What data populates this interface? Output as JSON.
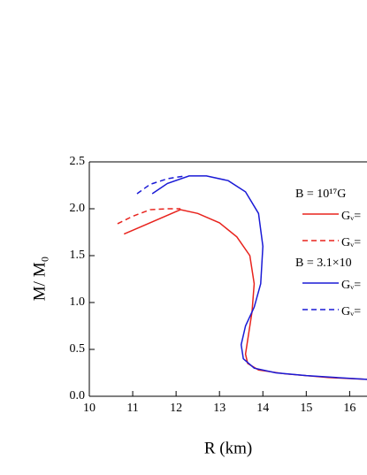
{
  "chart_data": {
    "type": "line",
    "x_label": "R (km)",
    "y_label": "M/ M₀",
    "xlim": [
      10,
      16.4
    ],
    "xticks": [
      10,
      11,
      12,
      13,
      14,
      15,
      16
    ],
    "ylim": [
      0,
      2.5
    ],
    "yticks": [
      {
        "value": 0,
        "label": "0.0"
      },
      {
        "value": 0.5,
        "label": "0.5"
      },
      {
        "value": 1,
        "label": "1.0"
      },
      {
        "value": 1.5,
        "label": "1.5"
      },
      {
        "value": 2,
        "label": "2.0"
      },
      {
        "value": 2.5,
        "label": "2.5"
      }
    ],
    "groups": [
      {
        "title": "B = 10¹⁷G",
        "series": [
          {
            "name": "Gᵥ=",
            "color": "#e8231d",
            "dashed": false,
            "x": [
              10.8,
              12.1,
              12.5,
              13.0,
              13.4,
              13.7,
              13.8,
              13.75,
              13.65,
              13.6,
              13.65,
              13.9,
              14.5,
              15.5,
              16.4
            ],
            "values": [
              1.73,
              1.99,
              1.95,
              1.85,
              1.7,
              1.5,
              1.2,
              0.9,
              0.6,
              0.45,
              0.35,
              0.28,
              0.24,
              0.2,
              0.18
            ]
          },
          {
            "name": "Gᵥ=",
            "color": "#e8231d",
            "dashed": true,
            "x": [
              10.65,
              11.0,
              11.4,
              11.8,
              12.1
            ],
            "values": [
              1.84,
              1.92,
              1.99,
              2.0,
              2.0
            ]
          }
        ]
      },
      {
        "title": "B = 3.1×10",
        "series": [
          {
            "name": "Gᵥ=",
            "color": "#1a1ad6",
            "dashed": false,
            "x": [
              11.45,
              11.8,
              12.3,
              12.7,
              13.2,
              13.6,
              13.9,
              14.0,
              13.95,
              13.8,
              13.6,
              13.5,
              13.55,
              13.8,
              14.3,
              15.0,
              16.4
            ],
            "values": [
              2.16,
              2.27,
              2.35,
              2.35,
              2.3,
              2.18,
              1.95,
              1.6,
              1.2,
              0.95,
              0.75,
              0.55,
              0.4,
              0.3,
              0.25,
              0.22,
              0.18
            ]
          },
          {
            "name": "Gᵥ=",
            "color": "#1a1ad6",
            "dashed": true,
            "x": [
              11.1,
              11.4,
              11.8,
              12.2
            ],
            "values": [
              2.16,
              2.26,
              2.32,
              2.35
            ]
          }
        ]
      }
    ]
  }
}
